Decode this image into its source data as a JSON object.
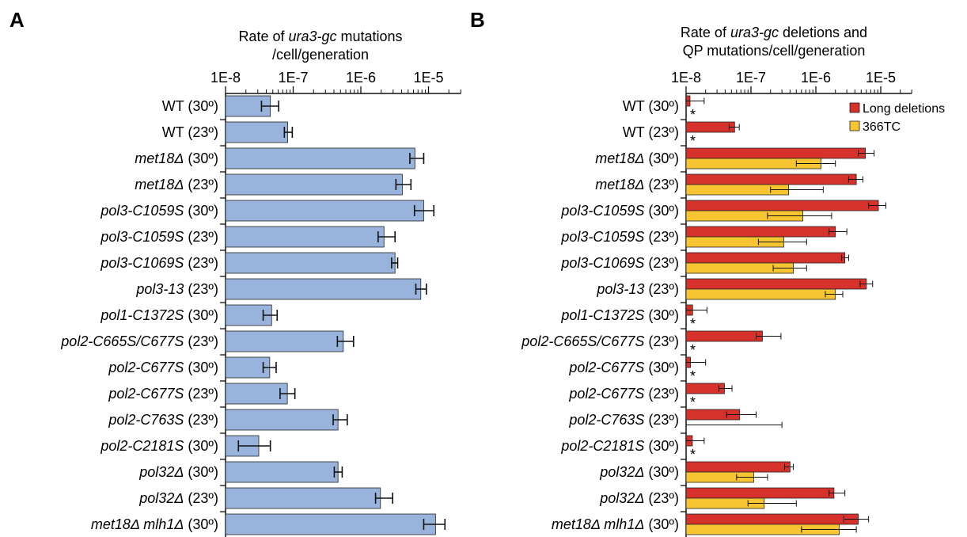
{
  "colors": {
    "blue": "#98b4dc",
    "red": "#d6312b",
    "yellow": "#f7c531",
    "axis": "#111111"
  },
  "legend": [
    {
      "label": "Long deletions",
      "color": "#d6312b"
    },
    {
      "label": "366TC",
      "color": "#f7c531"
    }
  ],
  "chart_data": [
    {
      "type": "bar",
      "orientation": "horizontal",
      "panel_label": "A",
      "title_lines": [
        [
          {
            "t": "Rate of "
          },
          {
            "t": "ura3-gc",
            "i": true
          },
          {
            "t": " mutations"
          }
        ],
        [
          {
            "t": "/cell/generation"
          }
        ]
      ],
      "x_scale": "log",
      "xlim": [
        "1E-8",
        "3E-5"
      ],
      "ticks": [
        "1E-8",
        "1E-7",
        "1E-6",
        "1E-5"
      ],
      "categories": [
        [
          {
            "t": "WT (30º)"
          }
        ],
        [
          {
            "t": "WT (23º)"
          }
        ],
        [
          {
            "t": "met18Δ",
            "i": true
          },
          {
            "t": " (30º)"
          }
        ],
        [
          {
            "t": "met18Δ",
            "i": true
          },
          {
            "t": " (23º)"
          }
        ],
        [
          {
            "t": "pol3-C1059S",
            "i": true
          },
          {
            "t": " (30º)"
          }
        ],
        [
          {
            "t": "pol3-C1059S",
            "i": true
          },
          {
            "t": " (23º)"
          }
        ],
        [
          {
            "t": "pol3-C1069S",
            "i": true
          },
          {
            "t": " (23º)"
          }
        ],
        [
          {
            "t": "pol3-13",
            "i": true
          },
          {
            "t": " (23º)"
          }
        ],
        [
          {
            "t": "pol1-C1372S",
            "i": true
          },
          {
            "t": " (30º)"
          }
        ],
        [
          {
            "t": "pol2-C665S/C677S",
            "i": true
          },
          {
            "t": " (23º)"
          }
        ],
        [
          {
            "t": "pol2-C677S",
            "i": true
          },
          {
            "t": " (30º)"
          }
        ],
        [
          {
            "t": "pol2-C677S",
            "i": true
          },
          {
            "t": " (23º)"
          }
        ],
        [
          {
            "t": "pol2-C763S",
            "i": true
          },
          {
            "t": " (23º)"
          }
        ],
        [
          {
            "t": "pol2-C2181S",
            "i": true
          },
          {
            "t": " (30º)"
          }
        ],
        [
          {
            "t": "pol32Δ",
            "i": true
          },
          {
            "t": " (30º)"
          }
        ],
        [
          {
            "t": "pol32Δ",
            "i": true
          },
          {
            "t": " (23º)"
          }
        ],
        [
          {
            "t": "met18Δ mlh1Δ",
            "i": true
          },
          {
            "t": " (30º)"
          }
        ]
      ],
      "series": [
        {
          "color": "#98b4dc",
          "values": [
            4.6e-08,
            8.3e-08,
            6.3e-06,
            4.1e-06,
            8.5e-06,
            2.2e-06,
            3.2e-06,
            7.7e-06,
            4.8e-08,
            5.5e-07,
            4.5e-08,
            8.2e-08,
            4.6e-07,
            3.1e-08,
            4.6e-07,
            1.95e-06,
            1.27e-05
          ],
          "err_low": [
            3.4e-08,
            7.4e-08,
            5.3e-06,
            3.3e-06,
            6.2e-06,
            1.8e-06,
            2.85e-06,
            6.5e-06,
            3.6e-08,
            4.5e-07,
            3.6e-08,
            6.4e-08,
            3.9e-07,
            1.55e-08,
            4.05e-07,
            1.65e-06,
            8.5e-06
          ],
          "err_high": [
            6.1e-08,
            9.7e-08,
            8.5e-06,
            5.5e-06,
            1.2e-05,
            3.2e-06,
            3.5e-06,
            9.3e-06,
            5.8e-08,
            7.8e-07,
            5.6e-08,
            1.06e-07,
            6.3e-07,
            4.6e-08,
            5.3e-07,
            2.95e-06,
            1.75e-05
          ]
        }
      ]
    },
    {
      "type": "bar",
      "orientation": "horizontal",
      "panel_label": "B",
      "title_lines": [
        [
          {
            "t": "Rate of "
          },
          {
            "t": "ura3-gc",
            "i": true
          },
          {
            "t": " deletions and"
          }
        ],
        [
          {
            "t": "QP mutations/cell/generation"
          }
        ]
      ],
      "x_scale": "log",
      "xlim": [
        "1E-8",
        "3E-5"
      ],
      "ticks": [
        "1E-8",
        "1E-7",
        "1E-6",
        "1E-5"
      ],
      "categories": [
        [
          {
            "t": "WT (30º)"
          }
        ],
        [
          {
            "t": "WT (23º)"
          }
        ],
        [
          {
            "t": "met18Δ",
            "i": true
          },
          {
            "t": " (30º)"
          }
        ],
        [
          {
            "t": "met18Δ",
            "i": true
          },
          {
            "t": " (23º)"
          }
        ],
        [
          {
            "t": "pol3-C1059S",
            "i": true
          },
          {
            "t": " (30º)"
          }
        ],
        [
          {
            "t": "pol3-C1059S",
            "i": true
          },
          {
            "t": " (23º)"
          }
        ],
        [
          {
            "t": "pol3-C1069S",
            "i": true
          },
          {
            "t": " (23º)"
          }
        ],
        [
          {
            "t": "pol3-13",
            "i": true
          },
          {
            "t": " (23º)"
          }
        ],
        [
          {
            "t": "pol1-C1372S",
            "i": true
          },
          {
            "t": " (30º)"
          }
        ],
        [
          {
            "t": "pol2-C665S/C677S",
            "i": true
          },
          {
            "t": " (23º)"
          }
        ],
        [
          {
            "t": "pol2-C677S",
            "i": true
          },
          {
            "t": " (30º)"
          }
        ],
        [
          {
            "t": "pol2-C677S",
            "i": true
          },
          {
            "t": " (23º)"
          }
        ],
        [
          {
            "t": "pol2-C763S",
            "i": true
          },
          {
            "t": " (23º)"
          }
        ],
        [
          {
            "t": "pol2-C2181S",
            "i": true
          },
          {
            "t": " (30º)"
          }
        ],
        [
          {
            "t": "pol32Δ",
            "i": true
          },
          {
            "t": " (30º)"
          }
        ],
        [
          {
            "t": "pol32Δ",
            "i": true
          },
          {
            "t": " (23º)"
          }
        ],
        [
          {
            "t": "met18Δ mlh1Δ",
            "i": true
          },
          {
            "t": " (30º)"
          }
        ]
      ],
      "series": [
        {
          "name": "Long deletions",
          "color": "#d6312b",
          "values": [
            1.15e-08,
            5.6e-08,
            5.8e-06,
            4.2e-06,
            9.2e-06,
            2e-06,
            2.8e-06,
            6e-06,
            1.26e-08,
            1.5e-07,
            1.17e-08,
            3.9e-08,
            6.7e-08,
            1.25e-08,
            4e-07,
            1.9e-06,
            4.5e-06
          ],
          "err_low": [
            1e-08,
            4.6e-08,
            4.5e-06,
            3.2e-06,
            6.5e-06,
            1.6e-06,
            2.5e-06,
            4.8e-06,
            1e-08,
            1.2e-07,
            1e-08,
            3.2e-08,
            4.2e-08,
            1e-08,
            3.3e-07,
            1.6e-06,
            2.7e-06
          ],
          "err_high": [
            1.9e-08,
            6.6e-08,
            7.9e-06,
            5.3e-06,
            1.2e-05,
            3e-06,
            3.2e-06,
            7.5e-06,
            2.1e-08,
            2.9e-07,
            2e-08,
            5.1e-08,
            1.2e-07,
            1.9e-08,
            4.5e-07,
            2.8e-06,
            6.5e-06
          ]
        },
        {
          "name": "366TC",
          "color": "#f7c531",
          "values": [
            null,
            null,
            1.2e-06,
            3.8e-07,
            6.3e-07,
            3.2e-07,
            4.5e-07,
            2e-06,
            null,
            null,
            null,
            null,
            null,
            null,
            1.1e-07,
            1.6e-07,
            2.3e-06
          ],
          "err_low": [
            null,
            null,
            5e-07,
            2e-07,
            1.8e-07,
            1.3e-07,
            2.2e-07,
            1.4e-06,
            null,
            null,
            null,
            null,
            null,
            null,
            6e-08,
            9e-08,
            6e-07
          ],
          "err_high": [
            null,
            null,
            2e-06,
            1.3e-06,
            1.75e-06,
            7.2e-07,
            7.2e-07,
            2.6e-06,
            null,
            null,
            null,
            null,
            null,
            null,
            1.8e-07,
            5e-07,
            4.2e-06
          ],
          "err_low_only": [
            false,
            false,
            false,
            false,
            false,
            false,
            false,
            false,
            false,
            false,
            false,
            false,
            true,
            false,
            false,
            false,
            false
          ],
          "err_low_only_values": [
            null,
            null,
            null,
            null,
            null,
            null,
            null,
            null,
            null,
            null,
            null,
            null,
            3e-07,
            null,
            null,
            null,
            null
          ]
        }
      ],
      "asterisk": "*",
      "asterisk_rows": [
        0,
        1,
        8,
        9,
        10,
        11,
        13
      ]
    }
  ]
}
